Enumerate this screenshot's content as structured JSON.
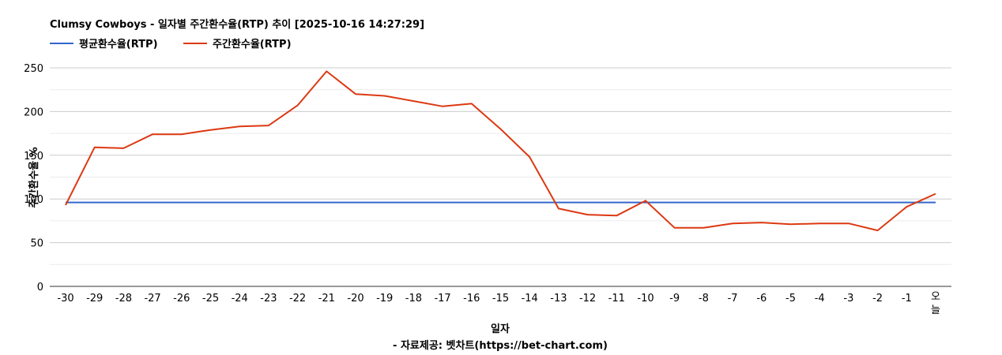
{
  "chart_data": {
    "type": "line",
    "title": "Clumsy Cowboys - 일자별 주간환수율(RTP) 추이 [2025-10-16 14:27:29]",
    "xlabel": "일자",
    "ylabel": "주간환수율 %",
    "source": "- 자료제공: 벳차트(https://bet-chart.com)",
    "categories": [
      "-30",
      "-29",
      "-28",
      "-27",
      "-26",
      "-25",
      "-24",
      "-23",
      "-22",
      "-21",
      "-20",
      "-19",
      "-18",
      "-17",
      "-16",
      "-15",
      "-14",
      "-13",
      "-12",
      "-11",
      "-10",
      "-9",
      "-8",
      "-7",
      "-6",
      "-5",
      "-4",
      "-3",
      "-2",
      "-1",
      "오늘"
    ],
    "series": [
      {
        "name": "평균환수율(RTP)",
        "color": "#3366cc",
        "values": [
          96,
          96,
          96,
          96,
          96,
          96,
          96,
          96,
          96,
          96,
          96,
          96,
          96,
          96,
          96,
          96,
          96,
          96,
          96,
          96,
          96,
          96,
          96,
          96,
          96,
          96,
          96,
          96,
          96,
          96,
          96
        ]
      },
      {
        "name": "주간환수율(RTP)",
        "color": "#dc3912",
        "values": [
          93,
          159,
          158,
          174,
          174,
          179,
          183,
          184,
          207,
          246,
          220,
          218,
          212,
          206,
          209,
          180,
          148,
          89,
          82,
          81,
          98,
          67,
          67,
          72,
          73,
          71,
          72,
          72,
          64,
          91,
          106
        ]
      }
    ],
    "yticks": [
      0,
      50,
      100,
      150,
      200,
      250
    ],
    "ylim": [
      0,
      250
    ],
    "grid": true,
    "legend": "top-left"
  }
}
